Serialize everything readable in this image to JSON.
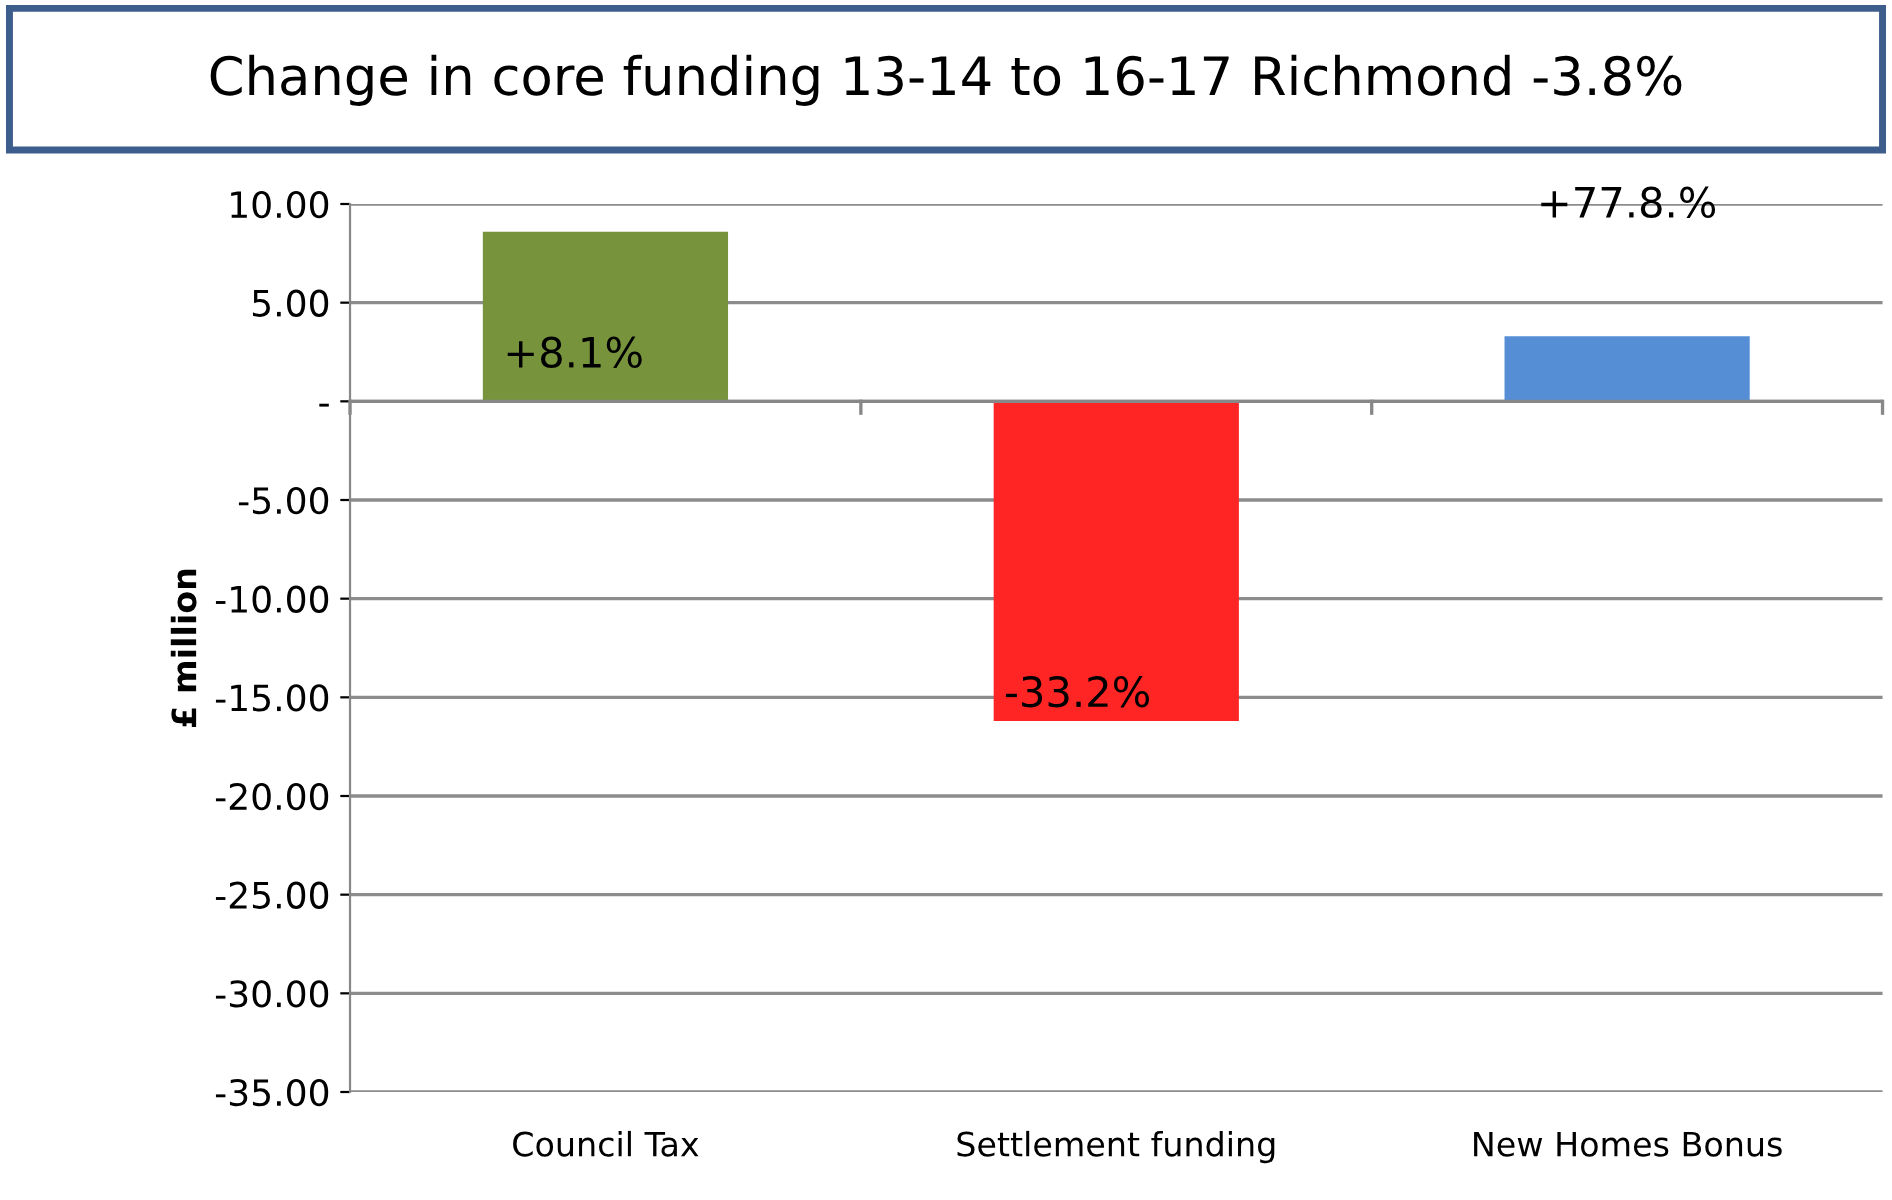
{
  "chart_data": {
    "type": "bar",
    "title": "Change in core funding 13-14 to 16-17 Richmond -3.8%",
    "ylabel": "£ million",
    "categories": [
      "Council Tax",
      "Settlement funding",
      "New Homes Bonus"
    ],
    "values": [
      8.6,
      -16.2,
      3.3
    ],
    "colors": [
      "#77933c",
      "#ff2525",
      "#558ed5"
    ],
    "annotations": [
      {
        "text": "+8.1%",
        "x": "Council Tax",
        "y": 8.6
      },
      {
        "text": "-33.2%",
        "x": "Settlement funding",
        "y": -16.2
      },
      {
        "text": "+77.8.%",
        "x": "New Homes Bonus",
        "y": 3.3
      }
    ],
    "ylim": [
      -35,
      10
    ],
    "yticks": [
      {
        "value": 10,
        "label": "10.00"
      },
      {
        "value": 5,
        "label": "5.00"
      },
      {
        "value": 0,
        "label": "-"
      },
      {
        "value": -5,
        "label": "-5.00"
      },
      {
        "value": -10,
        "label": "-10.00"
      },
      {
        "value": -15,
        "label": "-15.00"
      },
      {
        "value": -20,
        "label": "-20.00"
      },
      {
        "value": -25,
        "label": "-25.00"
      },
      {
        "value": -30,
        "label": "-30.00"
      },
      {
        "value": -35,
        "label": "-35.00"
      }
    ],
    "grid": "y"
  }
}
